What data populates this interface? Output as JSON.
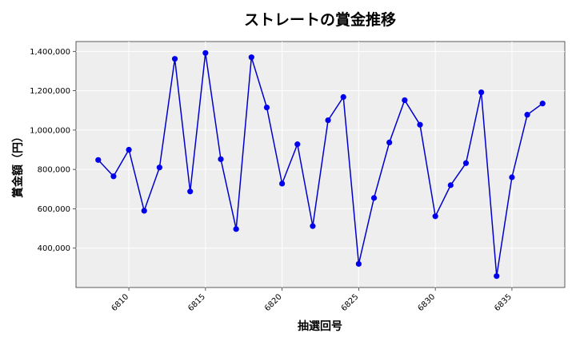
{
  "chart_data": {
    "type": "line",
    "title": "ストレートの賞金推移",
    "xlabel": "抽選回号",
    "ylabel": "賞金額（円）",
    "xlim": [
      6806.55,
      6838.45
    ],
    "ylim": [
      200000,
      1450000
    ],
    "xticks": [
      6810,
      6815,
      6820,
      6825,
      6830,
      6835
    ],
    "yticks": [
      400000,
      600000,
      800000,
      1000000,
      1200000,
      1400000
    ],
    "ytick_labels": [
      "400,000",
      "600,000",
      "800,000",
      "1,000,000",
      "1,200,000",
      "1,400,000"
    ],
    "grid": true,
    "line_color": "#0000cc",
    "marker_color": "#0000ee",
    "plot_background": "#eeeeee",
    "x": [
      6808,
      6809,
      6810,
      6811,
      6812,
      6813,
      6814,
      6815,
      6816,
      6817,
      6818,
      6819,
      6820,
      6821,
      6822,
      6823,
      6824,
      6825,
      6826,
      6827,
      6828,
      6829,
      6830,
      6831,
      6832,
      6833,
      6834,
      6835,
      6836,
      6837
    ],
    "y": [
      848000,
      765000,
      900000,
      590000,
      810000,
      1362000,
      688000,
      1392000,
      852000,
      497000,
      1370000,
      1115000,
      728000,
      928000,
      512000,
      1050000,
      1168000,
      320000,
      655000,
      937000,
      1152000,
      1027000,
      562000,
      720000,
      832000,
      1192000,
      258000,
      760000,
      1078000,
      1135000
    ]
  }
}
